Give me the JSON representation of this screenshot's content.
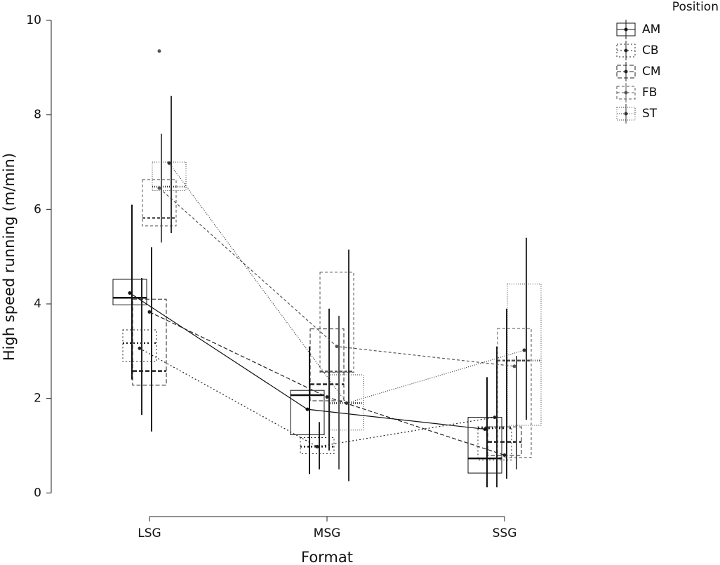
{
  "chart_data": {
    "type": "box",
    "x_label": "Format",
    "y_label": "High speed running (m/min)",
    "legend_title": "Position",
    "categories": [
      "LSG",
      "MSG",
      "SSG"
    ],
    "ylim": [
      -0.5,
      10
    ],
    "yticks": [
      0,
      2,
      4,
      6,
      8,
      10
    ],
    "legend": "top-right",
    "series": [
      {
        "name": "AM",
        "color": "#111111",
        "dash": "none",
        "q1": [
          3.98,
          1.23,
          0.42
        ],
        "median": [
          4.13,
          2.07,
          0.73
        ],
        "q3": [
          4.52,
          2.17,
          1.6
        ],
        "means": [
          4.23,
          1.77,
          1.35
        ],
        "err_low": [
          2.4,
          0.4,
          0.12
        ],
        "err_high": [
          6.1,
          3.1,
          2.45
        ],
        "outliers": [
          [],
          [],
          []
        ]
      },
      {
        "name": "CB",
        "color": "#222222",
        "dash": "2,3",
        "q1": [
          2.78,
          0.83,
          0.7
        ],
        "median": [
          3.17,
          0.98,
          1.37
        ],
        "q3": [
          3.45,
          1.17,
          1.4
        ],
        "means": [
          3.06,
          0.98,
          1.6
        ],
        "err_low": [
          1.65,
          0.5,
          0.12
        ],
        "err_high": [
          4.55,
          1.5,
          3.1
        ],
        "outliers": [
          [],
          [],
          []
        ]
      },
      {
        "name": "CM",
        "color": "#222222",
        "dash": "6,3",
        "q1": [
          2.28,
          1.95,
          0.8
        ],
        "median": [
          2.58,
          2.3,
          1.08
        ],
        "q3": [
          4.1,
          3.47,
          1.4
        ],
        "means": [
          3.83,
          2.03,
          0.8
        ],
        "err_low": [
          1.3,
          0.9,
          0.3
        ],
        "err_high": [
          5.2,
          3.9,
          3.9
        ],
        "outliers": [
          [],
          [],
          []
        ]
      },
      {
        "name": "FB",
        "color": "#555555",
        "dash": "4,3",
        "q1": [
          5.65,
          2.55,
          0.75
        ],
        "median": [
          5.82,
          2.57,
          2.8
        ],
        "q3": [
          6.63,
          4.67,
          3.48
        ],
        "means": [
          6.45,
          3.1,
          2.68
        ],
        "err_low": [
          5.3,
          0.5,
          0.5
        ],
        "err_high": [
          7.6,
          3.75,
          2.9
        ],
        "outliers": [
          [
            9.35
          ],
          [],
          []
        ]
      },
      {
        "name": "ST",
        "color": "#333333",
        "dash": "1,2",
        "q1": [
          6.4,
          1.33,
          1.43
        ],
        "median": [
          6.48,
          1.9,
          2.8
        ],
        "q3": [
          7.0,
          2.5,
          4.42
        ],
        "means": [
          6.98,
          1.9,
          3.02
        ],
        "err_low": [
          5.5,
          0.25,
          1.55
        ],
        "err_high": [
          8.4,
          5.15,
          5.4
        ],
        "outliers": [
          [],
          [],
          []
        ]
      }
    ]
  }
}
